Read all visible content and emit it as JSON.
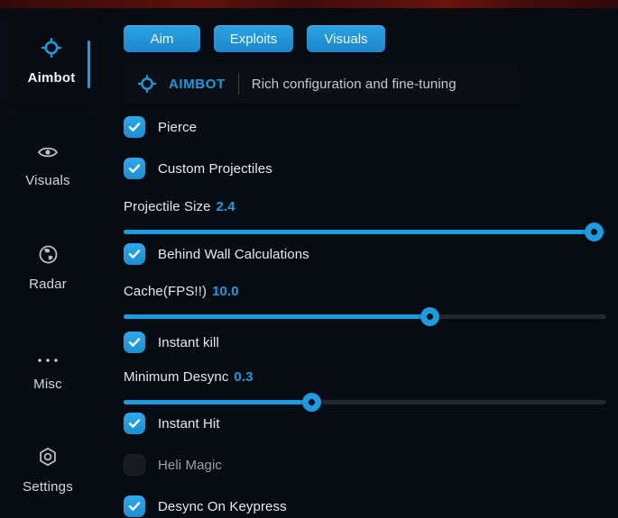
{
  "colors": {
    "accent": "#1d9be0",
    "top_strip_red": "#4c0e0a",
    "background": "#070b12",
    "panel": "#0b0e14",
    "track_empty": "#23272e"
  },
  "sidebar": {
    "items": [
      {
        "label": "Aimbot",
        "icon": "crosshair-icon",
        "active": true
      },
      {
        "label": "Visuals",
        "icon": "eye-icon",
        "active": false
      },
      {
        "label": "Radar",
        "icon": "globe-icon",
        "active": false
      },
      {
        "label": "Misc",
        "icon": "ellipsis-icon",
        "active": false
      },
      {
        "label": "Settings",
        "icon": "gear-icon",
        "active": false
      }
    ]
  },
  "tabs": [
    {
      "label": "Aim"
    },
    {
      "label": "Exploits"
    },
    {
      "label": "Visuals"
    }
  ],
  "header": {
    "title": "AIMBOT",
    "subtitle": "Rich configuration and fine-tuning"
  },
  "toggles": {
    "pierce": {
      "label": "Pierce",
      "checked": true
    },
    "custom_projectiles": {
      "label": "Custom Projectiles",
      "checked": true
    },
    "behind_wall": {
      "label": "Behind Wall Calculations",
      "checked": true
    },
    "instant_kill": {
      "label": "Instant kill",
      "checked": true
    },
    "instant_hit": {
      "label": "Instant Hit",
      "checked": true
    },
    "heli_magic": {
      "label": "Heli Magic",
      "checked": false
    },
    "desync_on_keypress": {
      "label": "Desync On Keypress",
      "checked": true
    }
  },
  "sliders": {
    "projectile_size": {
      "label": "Projectile Size",
      "value": "2.4",
      "percent": 97.5
    },
    "cache_fps": {
      "label": "Cache(FPS!!)",
      "value": "10.0",
      "percent": 63.5
    },
    "minimum_desync": {
      "label": "Minimum Desync",
      "value": "0.3",
      "percent": 39
    }
  }
}
